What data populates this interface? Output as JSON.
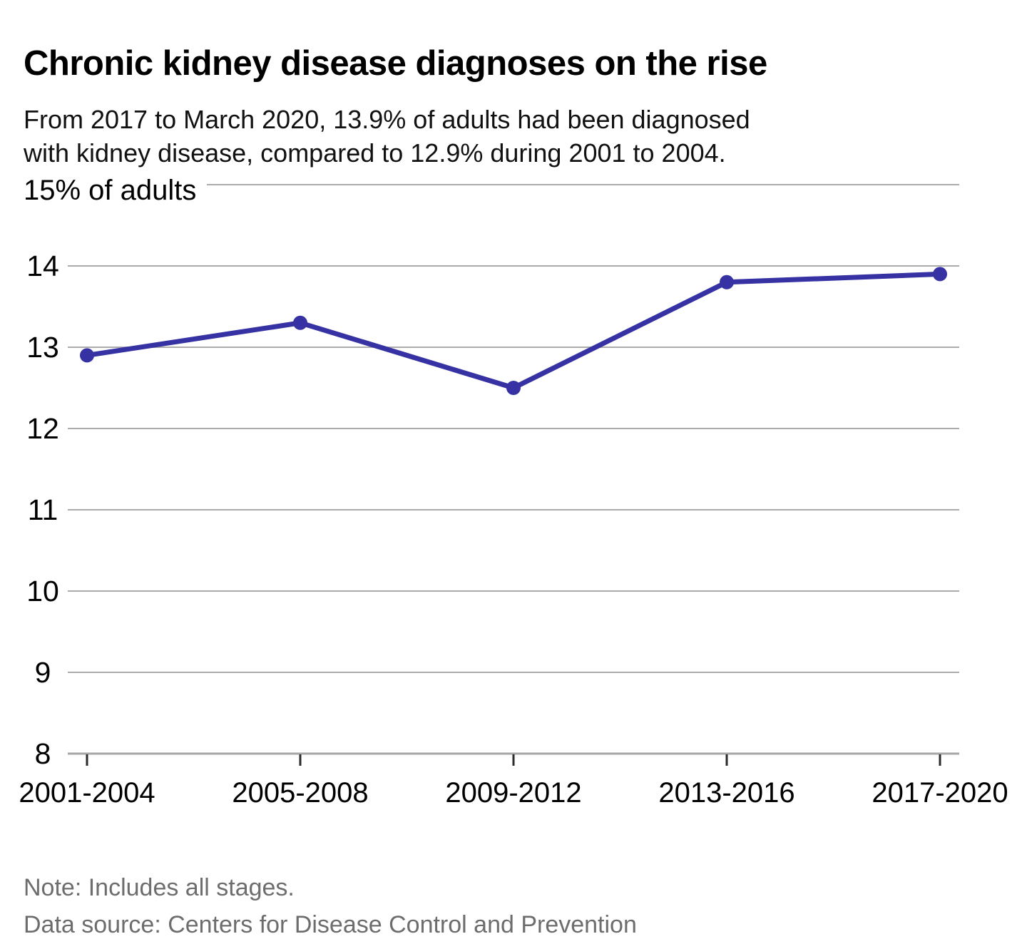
{
  "header": {
    "title": "Chronic kidney disease diagnoses on the rise",
    "subtitle_line1": "From 2017 to March 2020, 13.9% of adults had been diagnosed",
    "subtitle_line2": "with kidney disease, compared to 12.9% during 2001 to 2004."
  },
  "footer": {
    "note": "Note: Includes all stages.",
    "source": "Data source: Centers for Disease Control and Prevention"
  },
  "chart_data": {
    "type": "line",
    "title": "Chronic kidney disease diagnoses on the rise",
    "subtitle": "From 2017 to March 2020, 13.9% of adults had been diagnosed with kidney disease, compared to 12.9% during 2001 to 2004.",
    "categories": [
      "2001-2004",
      "2005-2008",
      "2009-2012",
      "2013-2016",
      "2017-2020"
    ],
    "values": [
      12.9,
      13.3,
      12.5,
      13.8,
      13.9
    ],
    "xlabel": "",
    "ylabel": "% of adults",
    "ylim": [
      8,
      15
    ],
    "ytick_interval": 1,
    "yticks": [
      8,
      9,
      10,
      11,
      12,
      13,
      14
    ],
    "top_axis_label": "15% of adults",
    "grid": "horizontal",
    "legend": "none",
    "line_color": "#3632a3",
    "marker_color": "#3632a3",
    "grid_color": "#ababab",
    "axis_color": "#a6a6a6",
    "tick_color": "#2b2b2b"
  }
}
